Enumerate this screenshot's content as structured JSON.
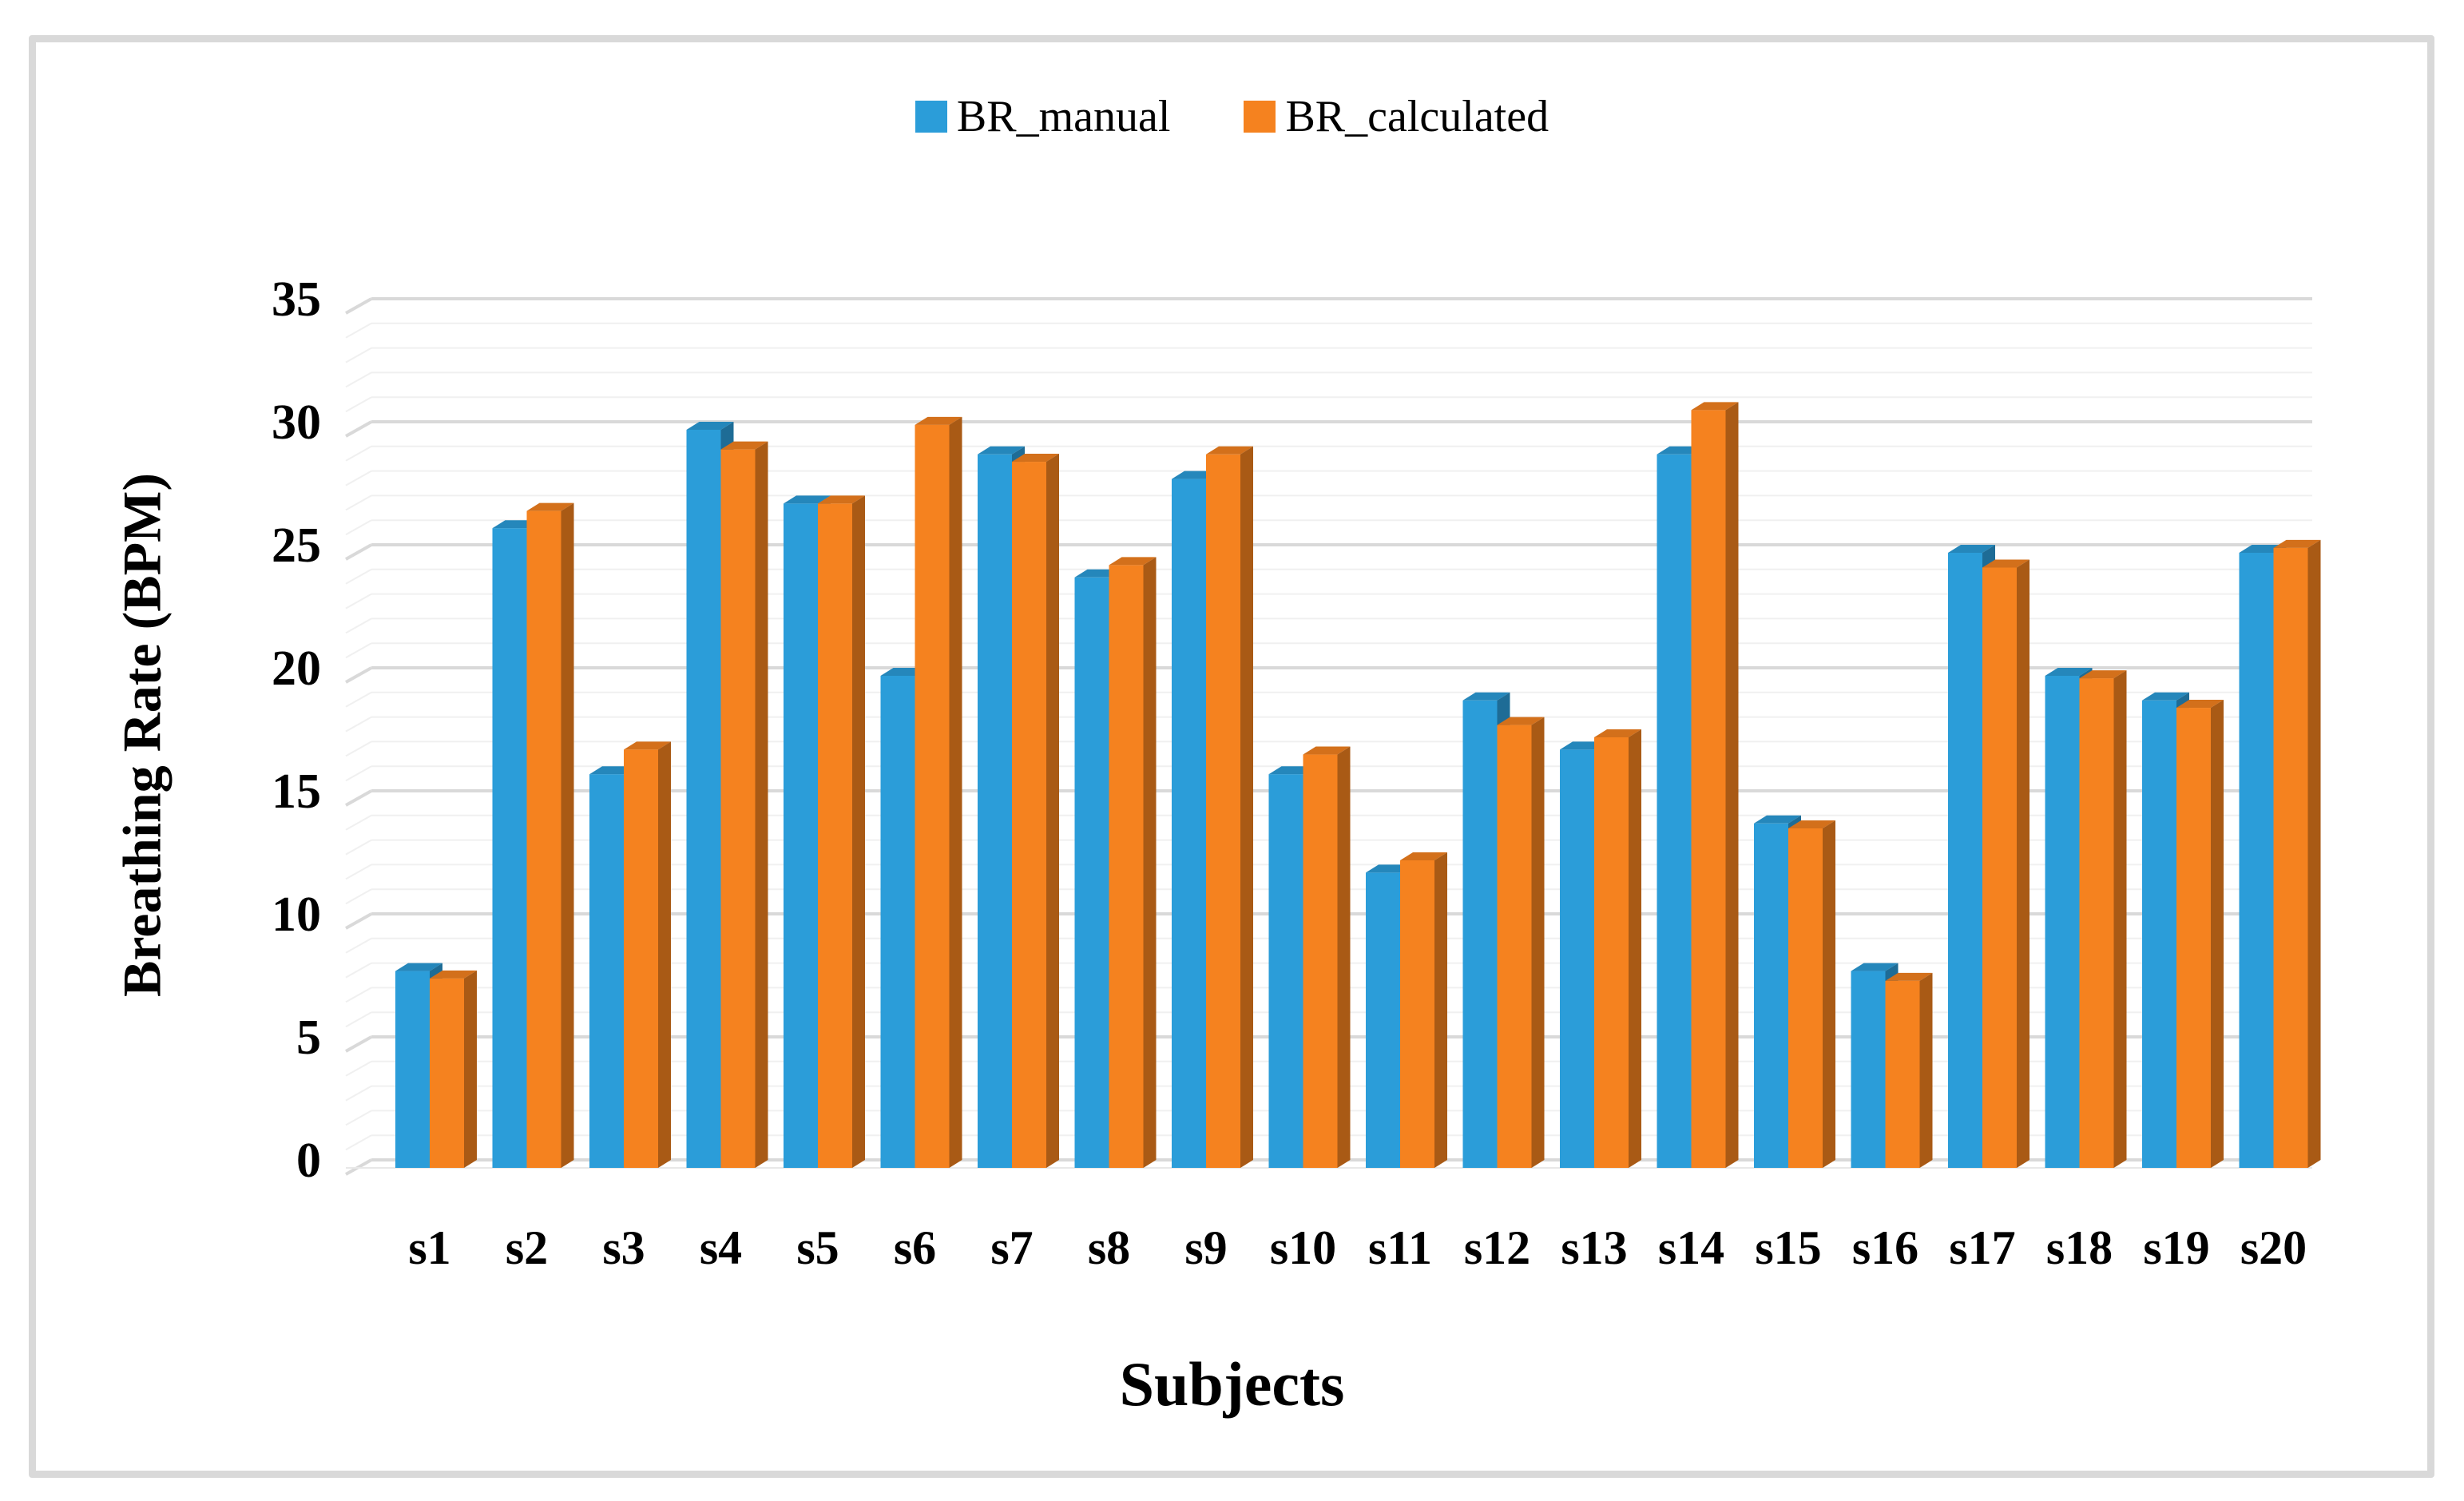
{
  "figure": {
    "background": "#ffffff",
    "border_color": "#d9d9d9"
  },
  "legend": [
    {
      "label": "BR_manual",
      "color": "#2b9dd9"
    },
    {
      "label": "BR_calculated",
      "color": "#f5821f"
    }
  ],
  "chart_data": {
    "type": "bar",
    "variant": "3d-clustered-column",
    "title": "",
    "xlabel": "Subjects",
    "ylabel": "Breathing Rate (BPM)",
    "categories": [
      "s1",
      "s2",
      "s3",
      "s4",
      "s5",
      "s6",
      "s7",
      "s8",
      "s9",
      "s10",
      "s11",
      "s12",
      "s13",
      "s14",
      "s15",
      "s16",
      "s17",
      "s18",
      "s19",
      "s20"
    ],
    "series": [
      {
        "name": "BR_manual",
        "color": "#2b9dd9",
        "values": [
          8,
          26,
          16,
          30,
          27,
          20,
          29,
          24,
          28,
          16,
          12,
          19,
          17,
          29,
          14,
          8,
          25,
          20,
          19,
          25
        ]
      },
      {
        "name": "BR_calculated",
        "color": "#f5821f",
        "values": [
          7.7,
          26.7,
          17,
          29.2,
          27,
          30.2,
          28.7,
          24.5,
          29,
          16.8,
          12.5,
          18,
          17.5,
          30.8,
          13.8,
          7.6,
          24.4,
          19.9,
          18.7,
          25.2
        ]
      }
    ],
    "ylim": [
      0,
      35
    ],
    "yticks": [
      0,
      5,
      10,
      15,
      20,
      25,
      30,
      35
    ],
    "ytick_interval": 5,
    "minor_tick_interval": 1,
    "grid": "horizontal major+minor, 3D back wall",
    "legend_position": "top-center",
    "gridline_major_color": "#d9d9d9",
    "gridline_minor_color": "#f0f0f0"
  }
}
